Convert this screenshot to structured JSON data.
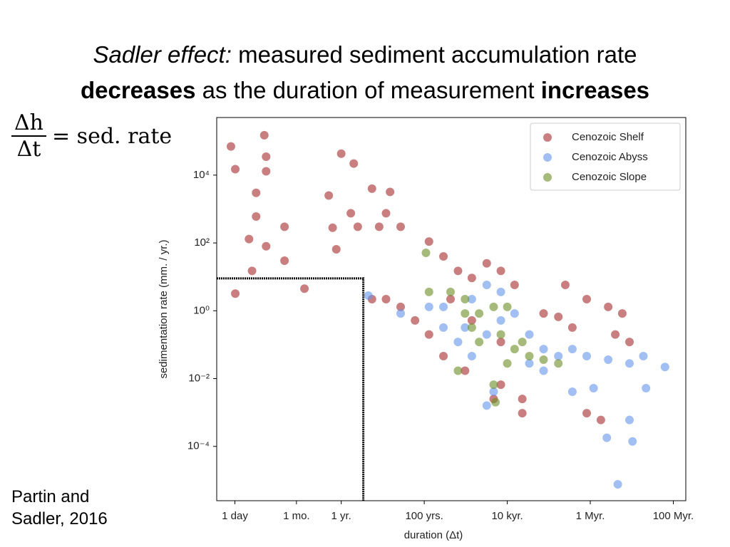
{
  "title_lines": [
    [
      {
        "text": "Sadler effect:",
        "style": "italic"
      },
      {
        "text": " measured sediment accumulation rate",
        "style": "normal"
      }
    ],
    [
      {
        "text": "decreases",
        "style": "bold"
      },
      {
        "text": " as the duration of measurement ",
        "style": "normal"
      },
      {
        "text": "increases",
        "style": "bold"
      }
    ]
  ],
  "formula": {
    "numerator": "Δh",
    "denominator": "Δt",
    "rhs": "= sed. rate"
  },
  "citation": [
    "Partin and",
    "Sadler, 2016"
  ],
  "chart_data": {
    "type": "scatter",
    "xlabel": "duration (Δt)",
    "ylabel": "sedimentation rate (mm. / yr.)",
    "xscale": "log",
    "yscale": "log",
    "xlim": [
      0.001,
      200000000
    ],
    "ylim": [
      2.5e-06,
      500000
    ],
    "xticks": [
      {
        "value": 0.00274,
        "label": "1 day"
      },
      {
        "value": 0.0833,
        "label": "1 mo."
      },
      {
        "value": 1,
        "label": "1 yr."
      },
      {
        "value": 100,
        "label": "100 yrs."
      },
      {
        "value": 10000,
        "label": "10 kyr."
      },
      {
        "value": 1000000,
        "label": "1 Myr."
      },
      {
        "value": 100000000,
        "label": "100 Myr."
      }
    ],
    "yticks": [
      {
        "value": 10000,
        "label": "10⁴"
      },
      {
        "value": 100,
        "label": "10²"
      },
      {
        "value": 1,
        "label": "10⁰"
      },
      {
        "value": 0.01,
        "label": "10⁻²"
      },
      {
        "value": 0.0001,
        "label": "10⁻⁴"
      }
    ],
    "legend": "upper right",
    "box": {
      "x": 3.4,
      "y": 9,
      "color": "#000000"
    },
    "series": [
      {
        "name": "Cenozoic Shelf",
        "color": "#a52a2a",
        "x": [
          0.0022,
          0.0028,
          0.0028,
          0.014,
          0.0155,
          0.0155,
          0.0089,
          0.0089,
          0.006,
          0.0071,
          0.0155,
          0.043,
          0.043,
          0.13,
          1.0,
          0.5,
          0.62,
          0.76,
          2.0,
          5.5,
          15,
          2.5,
          8.2,
          27,
          1.7,
          12,
          130,
          290,
          650,
          1400,
          3200,
          7000,
          15000,
          12,
          27,
          5.5,
          60,
          130,
          290,
          960,
          7000,
          23000,
          75000,
          250000,
          820000,
          2700000,
          5900000,
          8800000,
          4000000,
          370000,
          170000,
          820000,
          1800000,
          23000,
          4700,
          1400,
          7000,
          430
        ],
        "values": [
          70000,
          15000,
          3.2,
          150000,
          35000,
          13000,
          3000,
          600,
          130,
          15,
          80,
          300,
          30,
          4.5,
          43000,
          2500,
          280,
          65,
          22000,
          4000,
          3200,
          300,
          300,
          300,
          750,
          750,
          110,
          40,
          15,
          9.3,
          25,
          15,
          5.8,
          2.2,
          1.3,
          2.2,
          0.52,
          0.2,
          0.046,
          0.017,
          0.0066,
          0.0025,
          0.83,
          5.8,
          2.2,
          1.3,
          0.83,
          0.12,
          0.2,
          0.32,
          0.66,
          0.00095,
          0.0006,
          0.00095,
          0.0025,
          0.52,
          0.12,
          2.2
        ]
      },
      {
        "name": "Cenozoic Abyss",
        "color": "#6495ed",
        "x": [
          4.5,
          27,
          130,
          290,
          650,
          1400,
          3200,
          7000,
          15000,
          34000,
          75000,
          170000,
          370000,
          820000,
          2700000,
          8800000,
          19000000,
          63000000,
          22000000,
          8800000,
          10400000,
          2500000,
          4600000,
          3200,
          4700,
          1400,
          3200,
          7000,
          290,
          34000,
          370000,
          1200000,
          75000,
          960
        ],
        "values": [
          2.8,
          0.83,
          1.3,
          0.32,
          0.12,
          0.046,
          0.2,
          0.52,
          0.83,
          0.2,
          0.074,
          0.046,
          0.074,
          0.046,
          0.036,
          0.028,
          0.046,
          0.022,
          0.0052,
          0.0006,
          0.00014,
          0.00018,
          7.6e-06,
          0.0016,
          0.0041,
          2.2,
          5.8,
          3.6,
          1.3,
          0.028,
          0.0041,
          0.0052,
          0.017,
          0.32
        ]
      },
      {
        "name": "Cenozoic Slope",
        "color": "#6b8e23",
        "x": [
          110,
          130,
          430,
          960,
          1400,
          2100,
          4700,
          7000,
          15000,
          34000,
          75000,
          170000,
          10000,
          4700,
          650,
          2100,
          10000,
          5200,
          23000,
          960
        ],
        "values": [
          51,
          3.6,
          3.6,
          0.83,
          0.32,
          0.12,
          1.3,
          0.2,
          0.074,
          0.046,
          0.036,
          0.028,
          0.028,
          0.0066,
          0.017,
          0.83,
          1.3,
          0.002,
          0.12,
          2.2
        ]
      }
    ]
  }
}
